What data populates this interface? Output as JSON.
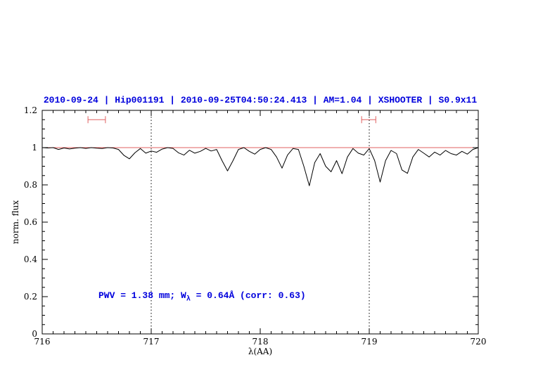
{
  "title": "2010-09-24 | Hip001191 | 2010-09-25T04:50:24.413 | AM=1.04 | XSHOOTER | S0.9x11",
  "annotation": {
    "pre": "PWV = 1.38 mm; W",
    "sub": "λ",
    "post": " = 0.64Å (corr: 0.63)"
  },
  "colors": {
    "title": "#0000dd",
    "annotation": "#0000dd",
    "spectrum": "#000000",
    "continuum": "#e06060",
    "interval_marker": "#e06060",
    "frame": "#000000",
    "dotted_line": "#000000"
  },
  "chart_data": {
    "type": "line",
    "title": "2010-09-24 | Hip001191 | 2010-09-25T04:50:24.413 | AM=1.04 | XSHOOTER | S0.9x11",
    "xlabel": "λ(AA)",
    "ylabel": "norm. flux",
    "xlim": [
      716,
      720
    ],
    "ylim": [
      0,
      1.2
    ],
    "xticks": [
      716,
      717,
      718,
      719,
      720
    ],
    "xtick_labels": [
      "716",
      "717",
      "718",
      "719",
      "720"
    ],
    "x_minor_step": 0.1,
    "yticks": [
      0,
      0.2,
      0.4,
      0.6,
      0.8,
      1,
      1.2
    ],
    "ytick_labels": [
      "0",
      "0.2",
      "0.4",
      "0.6",
      "0.8",
      "1",
      "1.2"
    ],
    "y_minor_step": 0.05,
    "grid": false,
    "legend": false,
    "vlines_dotted": [
      717,
      719
    ],
    "continuum_level": 1.0,
    "interval_markers": [
      {
        "x1": 716.42,
        "x2": 716.58,
        "y": 1.15
      },
      {
        "x1": 718.93,
        "x2": 719.06,
        "y": 1.15
      }
    ],
    "annotation_text": "PWV = 1.38 mm; Wλ = 0.64Å (corr: 0.63)",
    "series": [
      {
        "name": "spectrum",
        "x_start": 716.0,
        "x_step": 0.05,
        "flux": [
          1.0,
          0.998,
          1.0,
          0.99,
          0.998,
          0.993,
          0.997,
          1.0,
          0.996,
          1.0,
          0.997,
          0.995,
          1.0,
          0.998,
          0.99,
          0.958,
          0.94,
          0.972,
          0.995,
          0.97,
          0.982,
          0.975,
          0.992,
          1.0,
          0.996,
          0.972,
          0.96,
          0.986,
          0.97,
          0.98,
          0.996,
          0.982,
          0.99,
          0.93,
          0.875,
          0.93,
          0.99,
          1.0,
          0.98,
          0.965,
          0.99,
          1.0,
          0.99,
          0.95,
          0.89,
          0.96,
          0.995,
          0.99,
          0.9,
          0.795,
          0.92,
          0.968,
          0.9,
          0.87,
          0.93,
          0.86,
          0.95,
          0.995,
          0.97,
          0.96,
          0.995,
          0.93,
          0.815,
          0.93,
          0.985,
          0.968,
          0.88,
          0.862,
          0.95,
          0.99,
          0.97,
          0.95,
          0.976,
          0.96,
          0.985,
          0.968,
          0.96,
          0.98,
          0.965,
          0.99,
          1.0
        ]
      }
    ]
  }
}
